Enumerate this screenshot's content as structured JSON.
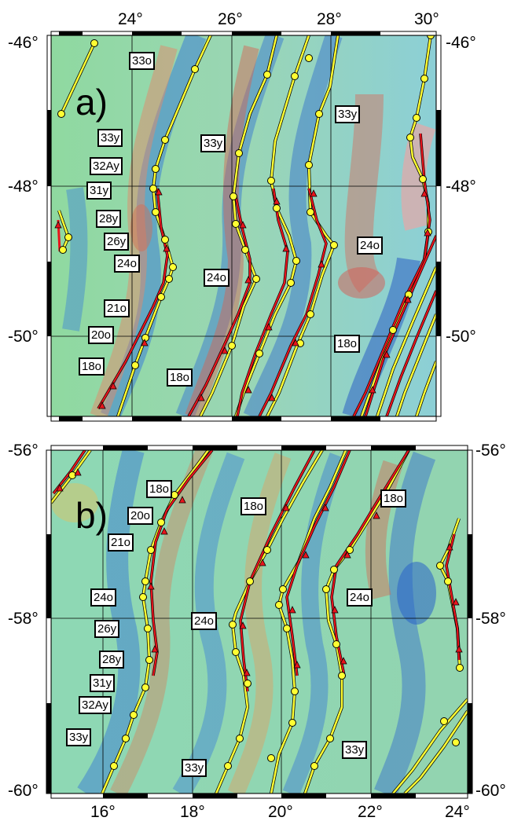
{
  "panels": [
    {
      "id": "a",
      "letter": "a)",
      "lon_ticks": [
        "24°",
        "26°",
        "28°",
        "30°"
      ],
      "lat_ticks_left": [
        "-46°",
        "-48°",
        "-50°"
      ],
      "lat_ticks_right": [
        "-46°",
        "-48°",
        "-50°"
      ],
      "labels": [
        "33o",
        "33y",
        "32Ay",
        "31y",
        "28y",
        "26y",
        "24o",
        "21o",
        "20o",
        "18o",
        "33y",
        "24o",
        "18o",
        "33y",
        "24o",
        "18o"
      ]
    },
    {
      "id": "b",
      "letter": "b)",
      "lon_ticks": [
        "16°",
        "18°",
        "20°",
        "22°",
        "24°"
      ],
      "lat_ticks_left": [
        "-56°",
        "-58°",
        "-60°"
      ],
      "lat_ticks_right": [
        "-56°",
        "-58°",
        "-60°"
      ],
      "labels": [
        "18o",
        "20o",
        "21o",
        "24o",
        "26y",
        "28y",
        "31y",
        "32Ay",
        "33y",
        "18o",
        "24o",
        "33y",
        "18o",
        "24o",
        "33y"
      ]
    }
  ],
  "colors": {
    "isochron_observed": "#ffff33",
    "isochron_predicted": "#e8141c",
    "low_anomaly": "#2a6fd1",
    "high_anomaly": "#d24a4a"
  }
}
